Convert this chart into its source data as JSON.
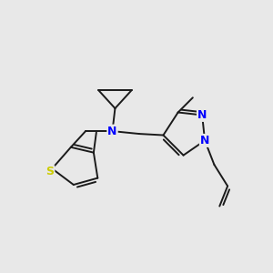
{
  "background_color": "#e8e8e8",
  "bond_color": "#1a1a1a",
  "N_color": "#0000ff",
  "S_color": "#cccc00",
  "figsize": [
    3.0,
    3.0
  ],
  "dpi": 100,
  "xlim": [
    0,
    10
  ],
  "ylim": [
    0,
    10
  ]
}
